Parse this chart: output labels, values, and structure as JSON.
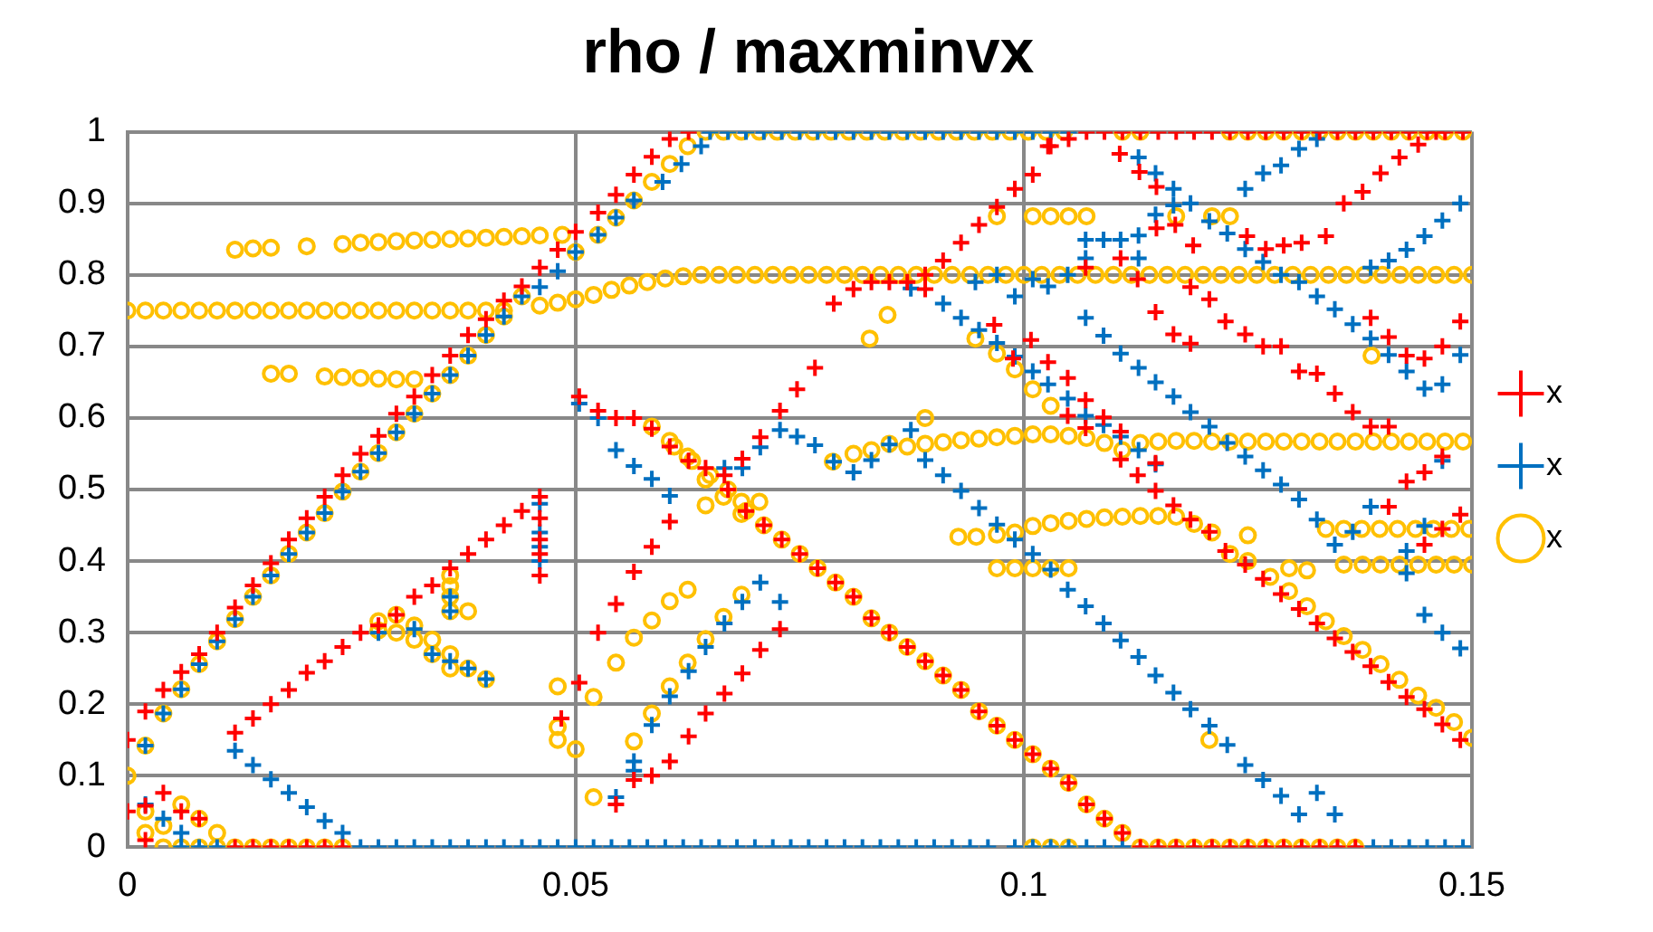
{
  "chart_data": {
    "type": "scatter",
    "title": "rho / maxminvx",
    "legend": "right",
    "grid": true,
    "xlim": [
      0,
      0.15
    ],
    "xticks": [
      0,
      0.05,
      0.1,
      0.15
    ],
    "ylim": [
      0,
      1
    ],
    "yticks": [
      0,
      0.1,
      0.2,
      0.3,
      0.4,
      0.5,
      0.6,
      0.7,
      0.8,
      0.9,
      1
    ],
    "series": [
      {
        "name": "x",
        "color": "#ff0000",
        "marker": "cross",
        "x": [
          0,
          0.002,
          0.004,
          0.006,
          0.008,
          0.01,
          0.012,
          0.014,
          0.016,
          0.018,
          0.02,
          0.022,
          0.024,
          0.026,
          0.028,
          0.03,
          0.032,
          0.034,
          0.036,
          0.038,
          0.04,
          0.042,
          0.044,
          0.046,
          0.048,
          0.05,
          0.0525,
          0.0545,
          0.0565,
          0.0585,
          0.0605,
          0.0626,
          0,
          0.002,
          0.002,
          0.004,
          0.006,
          0.008,
          0.012,
          0.014,
          0.016,
          0.018,
          0.02,
          0.022,
          0.024,
          0.012,
          0.014,
          0.016,
          0.018,
          0.02,
          0.022,
          0.024,
          0.026,
          0.028,
          0.03,
          0.032,
          0.034,
          0.036,
          0.038,
          0.04,
          0.042,
          0.044,
          0.046,
          0.046,
          0.046,
          0.046,
          0.046,
          0.0484,
          0.0504,
          0.0525,
          0.0545,
          0.0565,
          0.0585,
          0.0605,
          0.0666,
          0.0686,
          0.0706,
          0.0728,
          0.0747,
          0.0767,
          0.0788,
          0.081,
          0.083,
          0.085,
          0.087,
          0.089,
          0.089,
          0.091,
          0.093,
          0.095,
          0.097,
          0.099,
          0.101,
          0.103,
          0.105,
          0.0504,
          0.0525,
          0.0545,
          0.0565,
          0.0585,
          0.0605,
          0.0626,
          0.0645,
          0.067,
          0.069,
          0.071,
          0.073,
          0.075,
          0.077,
          0.079,
          0.081,
          0.083,
          0.085,
          0.087,
          0.089,
          0.091,
          0.093,
          0.095,
          0.097,
          0.099,
          0.101,
          0.103,
          0.105,
          0.107,
          0.109,
          0.111,
          0.0545,
          0.0565,
          0.0585,
          0.0605,
          0.0626,
          0.0645,
          0.0666,
          0.0686,
          0.0706,
          0.0728,
          0.0967,
          0.0988,
          0.1008,
          0.1027,
          0.1049,
          0.1049,
          0.1069,
          0.1069,
          0.1069,
          0.1089,
          0.1108,
          0.1108,
          0.1108,
          0.1127,
          0.1127,
          0.1147,
          0.1147,
          0.1147,
          0.1167,
          0.1167,
          0.1186,
          0.1186,
          0.1186,
          0.1207,
          0.1207,
          0.1225,
          0.1225,
          0.1247,
          0.1247,
          0.1267,
          0.1267,
          0.1287,
          0.1287,
          0.1307,
          0.1307,
          0.1327,
          0.1327,
          0.1347,
          0.1347,
          0.1367,
          0.1367,
          0.1387,
          0.1387,
          0.1387,
          0.1407,
          0.1407,
          0.1407,
          0.1407,
          0.1427,
          0.1427,
          0.1427,
          0.1447,
          0.1447,
          0.1447,
          0.1447,
          0.1467,
          0.1467,
          0.1467,
          0.1467,
          0.1487,
          0.1487,
          0.1487,
          0.1027,
          0.1107,
          0.1129,
          0.1148,
          0.1148,
          0.1169,
          0.1189,
          0.1249,
          0.127,
          0.129,
          0.131,
          0.1337,
          0.1357,
          0.1378,
          0.1398,
          0.1419,
          0.144,
          0.146,
          0.107,
          0.109,
          0.111,
          0.113,
          0.115,
          0.117,
          0.119,
          0.121,
          0.123,
          0.125,
          0.127,
          0.129,
          0.131,
          0.133,
          0.135,
          0.137,
          0.139,
          0.141,
          0.143,
          0.145,
          0.147,
          0.149,
          0.113,
          0.115,
          0.117,
          0.119,
          0.121,
          0.123,
          0.125,
          0.127,
          0.129,
          0.131,
          0.133,
          0.135,
          0.137
        ],
        "values": [
          0.15,
          0.19,
          0.22,
          0.245,
          0.27,
          0.3,
          0.335,
          0.366,
          0.397,
          0.43,
          0.46,
          0.49,
          0.52,
          0.55,
          0.575,
          0.606,
          0.63,
          0.66,
          0.687,
          0.716,
          0.738,
          0.764,
          0.784,
          0.81,
          0.835,
          0.86,
          0.887,
          0.912,
          0.94,
          0.965,
          0.99,
          1,
          0.05,
          0.058,
          0.01,
          0.076,
          0.05,
          0.04,
          0,
          0,
          0,
          0,
          0,
          0,
          0,
          0.16,
          0.18,
          0.2,
          0.22,
          0.244,
          0.26,
          0.28,
          0.3,
          0.31,
          0.325,
          0.35,
          0.366,
          0.39,
          0.41,
          0.43,
          0.45,
          0.47,
          0.49,
          0.46,
          0.43,
          0.41,
          0.38,
          0.18,
          0.23,
          0.3,
          0.34,
          0.385,
          0.42,
          0.455,
          0.52,
          0.543,
          0.573,
          0.61,
          0.64,
          0.67,
          0.76,
          0.78,
          0.79,
          0.79,
          0.79,
          0.78,
          0.8,
          0.82,
          0.845,
          0.87,
          0.895,
          0.92,
          0.94,
          0.98,
          0.99,
          0.63,
          0.61,
          0.6,
          0.6,
          0.585,
          0.56,
          0.54,
          0.53,
          0.5,
          0.47,
          0.45,
          0.43,
          0.41,
          0.39,
          0.37,
          0.35,
          0.32,
          0.3,
          0.28,
          0.26,
          0.24,
          0.22,
          0.19,
          0.17,
          0.15,
          0.13,
          0.11,
          0.09,
          0.06,
          0.04,
          0.02,
          0.06,
          0.094,
          0.1,
          0.12,
          0.155,
          0.187,
          0.215,
          0.243,
          0.276,
          0.305,
          0.73,
          0.683,
          0.709,
          0.678,
          0.656,
          0.603,
          0.625,
          0.586,
          0.81,
          0.601,
          0.823,
          0.581,
          0.542,
          0.52,
          0.794,
          0.748,
          0.537,
          0.498,
          0.717,
          0.478,
          0.783,
          0.704,
          0.458,
          0.766,
          0.441,
          0.735,
          0.414,
          0.717,
          0.395,
          0.7,
          0.375,
          0.7,
          0.354,
          0.665,
          0.333,
          0.662,
          0.313,
          0.634,
          0.292,
          0.608,
          0.273,
          0.74,
          0.588,
          0.253,
          0.713,
          0.588,
          0.476,
          0.231,
          0.687,
          0.511,
          0.21,
          0.683,
          0.524,
          0.423,
          0.193,
          0.7,
          0.546,
          0.445,
          0.172,
          0.735,
          0.465,
          0.15,
          0.98,
          0.969,
          0.944,
          0.923,
          0.865,
          0.87,
          0.841,
          0.854,
          0.836,
          0.841,
          0.845,
          0.854,
          0.9,
          0.916,
          0.942,
          0.964,
          0.982,
          1,
          1,
          1,
          1,
          1,
          1,
          1,
          1,
          1,
          1,
          1,
          1,
          1,
          1,
          1,
          1,
          1,
          1,
          1,
          1,
          1,
          1,
          1,
          0,
          0,
          0,
          0,
          0,
          0,
          0,
          0,
          0,
          0,
          0,
          0,
          0
        ]
      },
      {
        "name": "x",
        "color": "#0070c0",
        "marker": "cross",
        "x": [
          0.002,
          0.004,
          0.006,
          0.008,
          0.01,
          0.012,
          0.014,
          0.016,
          0.018,
          0.02,
          0.022,
          0.024,
          0.026,
          0.028,
          0.03,
          0.032,
          0.034,
          0.036,
          0.038,
          0.04,
          0.042,
          0.044,
          0.046,
          0.048,
          0.05,
          0.0525,
          0.0545,
          0.0565,
          0.0597,
          0.0618,
          0.064,
          0.065,
          0.067,
          0.069,
          0.071,
          0.073,
          0.075,
          0.077,
          0.079,
          0.081,
          0.083,
          0.085,
          0.087,
          0.089,
          0.091,
          0.093,
          0.095,
          0.097,
          0.099,
          0.101,
          0.103,
          0.105,
          0.002,
          0.004,
          0.006,
          0.012,
          0.014,
          0.016,
          0.018,
          0.02,
          0.022,
          0.024,
          0.006,
          0.008,
          0.01,
          0.026,
          0.028,
          0.03,
          0.032,
          0.034,
          0.036,
          0.038,
          0.04,
          0.042,
          0.044,
          0.046,
          0.048,
          0.05,
          0.052,
          0.054,
          0.056,
          0.058,
          0.06,
          0.062,
          0.064,
          0.066,
          0.068,
          0.07,
          0.072,
          0.074,
          0.076,
          0.078,
          0.08,
          0.082,
          0.084,
          0.086,
          0.088,
          0.09,
          0.092,
          0.094,
          0.096,
          0.099,
          0.101,
          0.103,
          0.105,
          0.107,
          0.109,
          0.111,
          0.139,
          0.141,
          0.143,
          0.145,
          0.147,
          0.149,
          0.028,
          0.032,
          0.034,
          0.036,
          0.036,
          0.036,
          0.038,
          0.04,
          0.046,
          0.046,
          0.046,
          0.046,
          0.0504,
          0.0525,
          0.0545,
          0.0565,
          0.0585,
          0.0605,
          0.0545,
          0.0565,
          0.0565,
          0.0585,
          0.0605,
          0.0626,
          0.0645,
          0.0666,
          0.0686,
          0.0706,
          0.0728,
          0.0666,
          0.0686,
          0.0706,
          0.0728,
          0.0747,
          0.0767,
          0.0788,
          0.081,
          0.083,
          0.085,
          0.0874,
          0.089,
          0.091,
          0.093,
          0.095,
          0.097,
          0.099,
          0.101,
          0.103,
          0.1049,
          0.1069,
          0.1089,
          0.1108,
          0.1128,
          0.1147,
          0.1167,
          0.1186,
          0.1207,
          0.1227,
          0.1247,
          0.1267,
          0.1287,
          0.1307,
          0.1327,
          0.1347,
          0.0874,
          0.091,
          0.093,
          0.095,
          0.097,
          0.099,
          0.101,
          0.1027,
          0.1049,
          0.1069,
          0.1089,
          0.1108,
          0.1128,
          0.1147,
          0.0946,
          0.097,
          0.099,
          0.101,
          0.1027,
          0.1049,
          0.1069,
          0.1069,
          0.1089,
          0.1108,
          0.1128,
          0.1128,
          0.1147,
          0.1167,
          0.1207,
          0.1227,
          0.1247,
          0.1267,
          0.1287,
          0.1307,
          0.1327,
          0.1347,
          0.1367,
          0.1387,
          0.1407,
          0.1427,
          0.1447,
          0.1467,
          0.1487,
          0.1247,
          0.1267,
          0.1287,
          0.1307,
          0.1327,
          0.1387,
          0.1407,
          0.1427,
          0.1447,
          0.1467,
          0.1487,
          0.1128,
          0.1147,
          0.1167,
          0.1186,
          0.1069,
          0.1089,
          0.1108,
          0.1128,
          0.1147,
          0.1167,
          0.1186,
          0.1207,
          0.1227,
          0.1247,
          0.1267,
          0.1287,
          0.1307,
          0.1327,
          0.1347,
          0.1367,
          0.1387,
          0.1427,
          0.1427,
          0.1447,
          0.1467,
          0.1447,
          0.1467,
          0.1487
        ],
        "values": [
          0.142,
          0.187,
          0.221,
          0.256,
          0.288,
          0.319,
          0.35,
          0.38,
          0.41,
          0.44,
          0.467,
          0.497,
          0.525,
          0.551,
          0.58,
          0.606,
          0.634,
          0.66,
          0.687,
          0.716,
          0.742,
          0.77,
          0.783,
          0.805,
          0.832,
          0.856,
          0.88,
          0.904,
          0.93,
          0.955,
          0.98,
          1,
          1,
          1,
          1,
          1,
          1,
          1,
          1,
          1,
          1,
          1,
          1,
          1,
          1,
          1,
          1,
          1,
          1,
          1,
          1,
          1,
          0.06,
          0.04,
          0.02,
          0.135,
          0.115,
          0.095,
          0.076,
          0.056,
          0.037,
          0.02,
          0,
          0,
          0,
          0,
          0,
          0,
          0,
          0,
          0,
          0,
          0,
          0,
          0,
          0,
          0,
          0,
          0,
          0,
          0,
          0,
          0,
          0,
          0,
          0,
          0,
          0,
          0,
          0,
          0,
          0,
          0,
          0,
          0,
          0,
          0,
          0,
          0,
          0,
          0,
          0,
          0,
          0,
          0,
          0,
          0,
          0,
          0,
          0,
          0,
          0,
          0,
          0,
          0.3,
          0.305,
          0.27,
          0.35,
          0.33,
          0.26,
          0.25,
          0.235,
          0.48,
          0.44,
          0.42,
          0.4,
          0.62,
          0.6,
          0.555,
          0.533,
          0.515,
          0.491,
          0.07,
          0.12,
          0.107,
          0.171,
          0.211,
          0.246,
          0.28,
          0.313,
          0.343,
          0.37,
          0.343,
          0.53,
          0.53,
          0.559,
          0.583,
          0.574,
          0.562,
          0.539,
          0.524,
          0.541,
          0.563,
          0.583,
          0.541,
          0.52,
          0.498,
          0.474,
          0.451,
          0.43,
          0.41,
          0.388,
          0.36,
          0.337,
          0.313,
          0.289,
          0.266,
          0.24,
          0.216,
          0.193,
          0.17,
          0.143,
          0.115,
          0.094,
          0.072,
          0.046,
          0.076,
          0.046,
          0.781,
          0.76,
          0.74,
          0.723,
          0.705,
          0.686,
          0.665,
          0.647,
          0.627,
          0.603,
          0.59,
          0.574,
          0.555,
          0.535,
          0.79,
          0.8,
          0.77,
          0.794,
          0.784,
          0.8,
          0.823,
          0.849,
          0.849,
          0.849,
          0.855,
          0.823,
          0.884,
          0.897,
          0.875,
          0.858,
          0.836,
          0.818,
          0.8,
          0.79,
          0.77,
          0.752,
          0.731,
          0.711,
          0.688,
          0.665,
          0.641,
          0.647,
          0.688,
          0.92,
          0.942,
          0.953,
          0.976,
          0.99,
          0.81,
          0.82,
          0.835,
          0.854,
          0.876,
          0.9,
          0.964,
          0.942,
          0.92,
          0.9,
          0.74,
          0.715,
          0.69,
          0.67,
          0.65,
          0.63,
          0.608,
          0.588,
          0.565,
          0.546,
          0.527,
          0.507,
          0.486,
          0.458,
          0.423,
          0.441,
          0.476,
          0.414,
          0.383,
          0.449,
          0.54,
          0.325,
          0.3,
          0.278
        ]
      },
      {
        "name": "x",
        "color": "#ffc000",
        "marker": "circle",
        "x": [
          0,
          0.002,
          0.004,
          0.006,
          0.008,
          0.01,
          0.012,
          0.014,
          0.016,
          0.018,
          0.02,
          0.022,
          0.024,
          0.026,
          0.028,
          0.03,
          0.032,
          0.034,
          0.036,
          0.038,
          0.04,
          0.042,
          0.046,
          0.048,
          0.05,
          0.052,
          0.054,
          0.056,
          0.058,
          0.06,
          0.062,
          0.064,
          0.066,
          0.068,
          0.07,
          0.072,
          0.074,
          0.076,
          0.078,
          0.08,
          0.082,
          0.084,
          0.086,
          0.088,
          0.09,
          0.092,
          0.094,
          0.096,
          0.098,
          0.1,
          0.102,
          0.104,
          0.106,
          0.108,
          0.11,
          0.112,
          0.114,
          0.116,
          0.118,
          0.12,
          0.122,
          0.124,
          0.126,
          0.128,
          0.13,
          0.132,
          0.134,
          0.136,
          0.138,
          0.14,
          0.142,
          0.144,
          0.146,
          0.148,
          0.15,
          0.012,
          0.014,
          0.016,
          0.02,
          0.024,
          0.026,
          0.028,
          0.03,
          0.032,
          0.034,
          0.036,
          0.038,
          0.04,
          0.042,
          0.044,
          0.046,
          0.0485,
          0,
          0.002,
          0.004,
          0.006,
          0.008,
          0.01,
          0.012,
          0.014,
          0.016,
          0.018,
          0.02,
          0.022,
          0.024,
          0.026,
          0.028,
          0.03,
          0.032,
          0.034,
          0.036,
          0.038,
          0.04,
          0.042,
          0.044,
          0.05,
          0.0525,
          0.0545,
          0.0565,
          0.0585,
          0.0605,
          0.0625,
          0.0645,
          0.0665,
          0.0685,
          0.0705,
          0.0725,
          0.0745,
          0.0765,
          0.0785,
          0.0805,
          0.0825,
          0.0845,
          0.0865,
          0.0885,
          0.0905,
          0.0925,
          0.0945,
          0.0965,
          0.0985,
          0.1005,
          0.1025,
          0.1045,
          0.111,
          0.113,
          0.123,
          0.125,
          0.127,
          0.129,
          0.131,
          0.133,
          0.135,
          0.137,
          0.139,
          0.141,
          0.143,
          0.145,
          0.147,
          0.149,
          0.016,
          0.018,
          0.022,
          0.024,
          0.026,
          0.028,
          0.03,
          0.032,
          0.028,
          0.028,
          0.03,
          0.03,
          0.032,
          0.032,
          0.034,
          0.034,
          0.036,
          0.036,
          0.036,
          0.036,
          0.036,
          0.036,
          0.038,
          0.038,
          0.04,
          0.002,
          0.002,
          0.004,
          0.006,
          0.008,
          0.01,
          0.004,
          0.006,
          0.008,
          0.01,
          0.012,
          0.014,
          0.016,
          0.018,
          0.02,
          0.022,
          0.024,
          0.048,
          0.048,
          0.048,
          0.05,
          0.052,
          0.052,
          0.0545,
          0.0565,
          0.0565,
          0.0585,
          0.0585,
          0.0605,
          0.0605,
          0.0625,
          0.0625,
          0.0645,
          0.0665,
          0.0685,
          0.0705,
          0.0685,
          0.0685,
          0.0665,
          0.0645,
          0.0645,
          0.0625,
          0.0605,
          0.0585,
          0.061,
          0.063,
          0.065,
          0.067,
          0.069,
          0.071,
          0.073,
          0.075,
          0.077,
          0.079,
          0.081,
          0.083,
          0.085,
          0.087,
          0.089,
          0.091,
          0.093,
          0.095,
          0.097,
          0.099,
          0.101,
          0.103,
          0.105,
          0.107,
          0.109,
          0.111,
          0.0787,
          0.081,
          0.083,
          0.085,
          0.087,
          0.089,
          0.091,
          0.093,
          0.095,
          0.097,
          0.099,
          0.101,
          0.103,
          0.105,
          0.107,
          0.109,
          0.111,
          0.113,
          0.115,
          0.117,
          0.119,
          0.121,
          0.123,
          0.125,
          0.127,
          0.129,
          0.131,
          0.133,
          0.135,
          0.137,
          0.139,
          0.141,
          0.143,
          0.145,
          0.147,
          0.149,
          0.089,
          0.0848,
          0.0828,
          0.097,
          0.101,
          0.103,
          0.105,
          0.107,
          0.117,
          0.121,
          0.123,
          0.0946,
          0.097,
          0.099,
          0.101,
          0.103,
          0.0927,
          0.0947,
          0.097,
          0.099,
          0.101,
          0.103,
          0.105,
          0.107,
          0.109,
          0.111,
          0.113,
          0.115,
          0.117,
          0.119,
          0.121,
          0.123,
          0.125,
          0.1275,
          0.1296,
          0.1316,
          0.1337,
          0.1357,
          0.1378,
          0.1398,
          0.1419,
          0.144,
          0.146,
          0.148,
          0.15,
          0.097,
          0.099,
          0.101,
          0.103,
          0.105,
          0.1296,
          0.1316,
          0.1357,
          0.1378,
          0.1398,
          0.1419,
          0.144,
          0.146,
          0.148,
          0.15,
          0.1337,
          0.1357,
          0.1377,
          0.1397,
          0.1417,
          0.1437,
          0.1457,
          0.1477,
          0.1497,
          0.125,
          0.101,
          0.103,
          0.105,
          0.113,
          0.115,
          0.117,
          0.119,
          0.121,
          0.123,
          0.125,
          0.127,
          0.129,
          0.131,
          0.133,
          0.135,
          0.137,
          0.1207,
          0.1388
        ],
        "values": [
          0.75,
          0.75,
          0.75,
          0.75,
          0.75,
          0.75,
          0.75,
          0.75,
          0.75,
          0.75,
          0.75,
          0.75,
          0.75,
          0.75,
          0.75,
          0.75,
          0.75,
          0.75,
          0.75,
          0.75,
          0.75,
          0.75,
          0.757,
          0.761,
          0.766,
          0.772,
          0.779,
          0.785,
          0.79,
          0.795,
          0.798,
          0.8,
          0.8,
          0.8,
          0.8,
          0.8,
          0.8,
          0.8,
          0.8,
          0.8,
          0.8,
          0.8,
          0.8,
          0.8,
          0.8,
          0.8,
          0.8,
          0.8,
          0.8,
          0.8,
          0.8,
          0.8,
          0.8,
          0.8,
          0.8,
          0.8,
          0.8,
          0.8,
          0.8,
          0.8,
          0.8,
          0.8,
          0.8,
          0.8,
          0.8,
          0.8,
          0.8,
          0.8,
          0.8,
          0.8,
          0.8,
          0.8,
          0.8,
          0.8,
          0.8,
          0.835,
          0.837,
          0.838,
          0.84,
          0.843,
          0.845,
          0.846,
          0.847,
          0.848,
          0.849,
          0.85,
          0.851,
          0.852,
          0.853,
          0.854,
          0.855,
          0.856,
          0.1,
          0.142,
          0.187,
          0.221,
          0.256,
          0.288,
          0.319,
          0.35,
          0.38,
          0.41,
          0.44,
          0.467,
          0.497,
          0.525,
          0.551,
          0.58,
          0.606,
          0.634,
          0.66,
          0.687,
          0.716,
          0.742,
          0.77,
          0.832,
          0.856,
          0.88,
          0.904,
          0.93,
          0.955,
          0.98,
          1,
          1,
          1,
          1,
          1,
          1,
          1,
          1,
          1,
          1,
          1,
          1,
          1,
          1,
          1,
          1,
          1,
          1,
          1,
          1,
          1,
          1,
          1,
          1,
          1,
          1,
          1,
          1,
          1,
          1,
          1,
          1,
          1,
          1,
          1,
          1,
          1,
          0.662,
          0.662,
          0.658,
          0.657,
          0.656,
          0.655,
          0.654,
          0.654,
          0.316,
          0.303,
          0.325,
          0.3,
          0.31,
          0.29,
          0.29,
          0.27,
          0.38,
          0.365,
          0.35,
          0.33,
          0.27,
          0.25,
          0.33,
          0.25,
          0.235,
          0.05,
          0.02,
          0.03,
          0.06,
          0.04,
          0.02,
          0,
          0,
          0,
          0,
          0,
          0,
          0,
          0,
          0,
          0,
          0,
          0.225,
          0.168,
          0.15,
          0.137,
          0.21,
          0.07,
          0.258,
          0.293,
          0.148,
          0.317,
          0.187,
          0.344,
          0.225,
          0.36,
          0.258,
          0.291,
          0.322,
          0.353,
          0.483,
          0.483,
          0.466,
          0.49,
          0.478,
          0.514,
          0.546,
          0.568,
          0.588,
          0.56,
          0.54,
          0.52,
          0.5,
          0.47,
          0.45,
          0.43,
          0.41,
          0.39,
          0.37,
          0.35,
          0.32,
          0.3,
          0.28,
          0.26,
          0.24,
          0.22,
          0.19,
          0.17,
          0.15,
          0.13,
          0.11,
          0.09,
          0.06,
          0.04,
          0.02,
          0.539,
          0.55,
          0.555,
          0.564,
          0.56,
          0.564,
          0.566,
          0.569,
          0.571,
          0.573,
          0.575,
          0.577,
          0.577,
          0.575,
          0.572,
          0.565,
          0.555,
          0.565,
          0.567,
          0.568,
          0.568,
          0.567,
          0.567,
          0.567,
          0.567,
          0.567,
          0.567,
          0.567,
          0.567,
          0.567,
          0.567,
          0.567,
          0.567,
          0.567,
          0.567,
          0.567,
          0.6,
          0.744,
          0.711,
          0.882,
          0.882,
          0.882,
          0.882,
          0.882,
          0.882,
          0.882,
          0.882,
          0.711,
          0.69,
          0.668,
          0.64,
          0.617,
          0.434,
          0.434,
          0.437,
          0.44,
          0.449,
          0.453,
          0.456,
          0.459,
          0.461,
          0.462,
          0.463,
          0.463,
          0.462,
          0.452,
          0.44,
          0.41,
          0.4,
          0.378,
          0.358,
          0.337,
          0.316,
          0.295,
          0.276,
          0.256,
          0.234,
          0.212,
          0.195,
          0.175,
          0.153,
          0.39,
          0.39,
          0.39,
          0.39,
          0.39,
          0.39,
          0.387,
          0.395,
          0.395,
          0.395,
          0.395,
          0.395,
          0.395,
          0.395,
          0.395,
          0.445,
          0.445,
          0.445,
          0.445,
          0.445,
          0.445,
          0.445,
          0.445,
          0.445,
          0.436,
          0,
          0,
          0,
          0,
          0,
          0,
          0,
          0,
          0,
          0,
          0,
          0,
          0,
          0,
          0,
          0,
          0.15,
          0.687
        ]
      }
    ]
  }
}
